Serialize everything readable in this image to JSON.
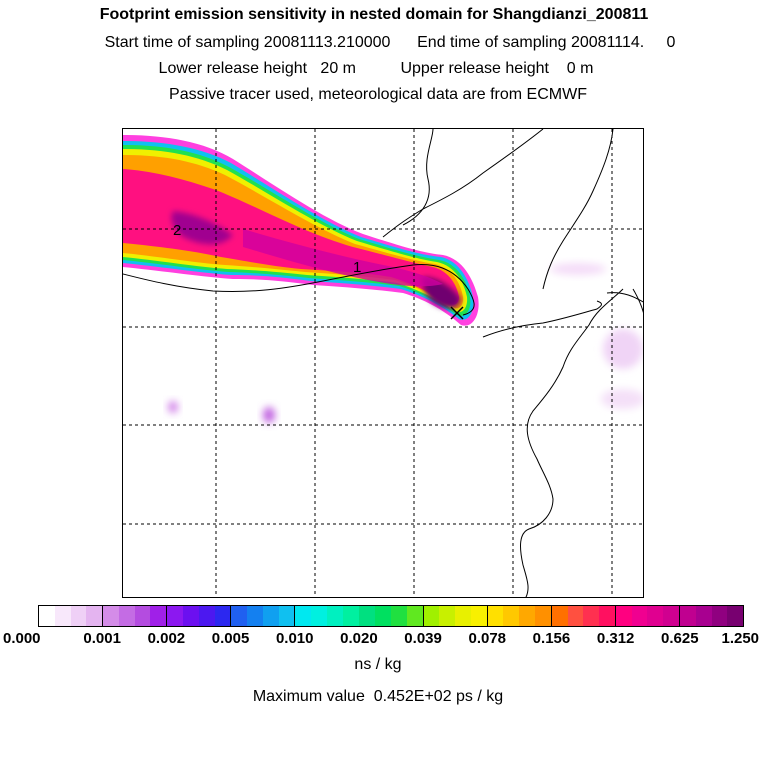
{
  "header": {
    "title": "Footprint emission sensitivity in nested domain for Shangdianzi_200811",
    "sampling_line": "Start time of sampling 20081113.210000      End time of sampling 20081114.     0",
    "release_line": "Lower release height   20 m          Upper release height    0 m",
    "tracer_line": "Passive tracer used, meteorological data are from ECMWF"
  },
  "map": {
    "markers": [
      {
        "label": "2"
      },
      {
        "label": "1"
      },
      {
        "label": "X"
      }
    ]
  },
  "colorbar": {
    "ticks": [
      "0.000",
      "0.001",
      "0.002",
      "0.005",
      "0.010",
      "0.020",
      "0.039",
      "0.078",
      "0.156",
      "0.312",
      "0.625",
      "1.250"
    ],
    "colors": [
      "#ffffff",
      "#f8e8fb",
      "#efd0f6",
      "#e4b4f0",
      "#d48ce8",
      "#c46ce4",
      "#b44ce0",
      "#a020e8",
      "#8c18f0",
      "#6c10f0",
      "#4c18f0",
      "#2c28f0",
      "#2060f0",
      "#1480f0",
      "#10a0f0",
      "#10c0f0",
      "#00e8f0",
      "#00f0e0",
      "#00f0c0",
      "#00f0a0",
      "#00e080",
      "#00e060",
      "#20e040",
      "#60e820",
      "#a0f000",
      "#c8f000",
      "#e8f000",
      "#f8f000",
      "#ffe000",
      "#ffc800",
      "#ffa800",
      "#ff9000",
      "#ff7000",
      "#ff5040",
      "#ff3050",
      "#ff1060",
      "#ff0080",
      "#f00090",
      "#e00090",
      "#d00090",
      "#c00090",
      "#a80090",
      "#900080",
      "#780070",
      "#600060",
      "#500050",
      "#400040",
      "#300030"
    ],
    "unit": "ns / kg"
  },
  "footer": {
    "max_value": "Maximum value  0.452E+02 ps / kg"
  }
}
